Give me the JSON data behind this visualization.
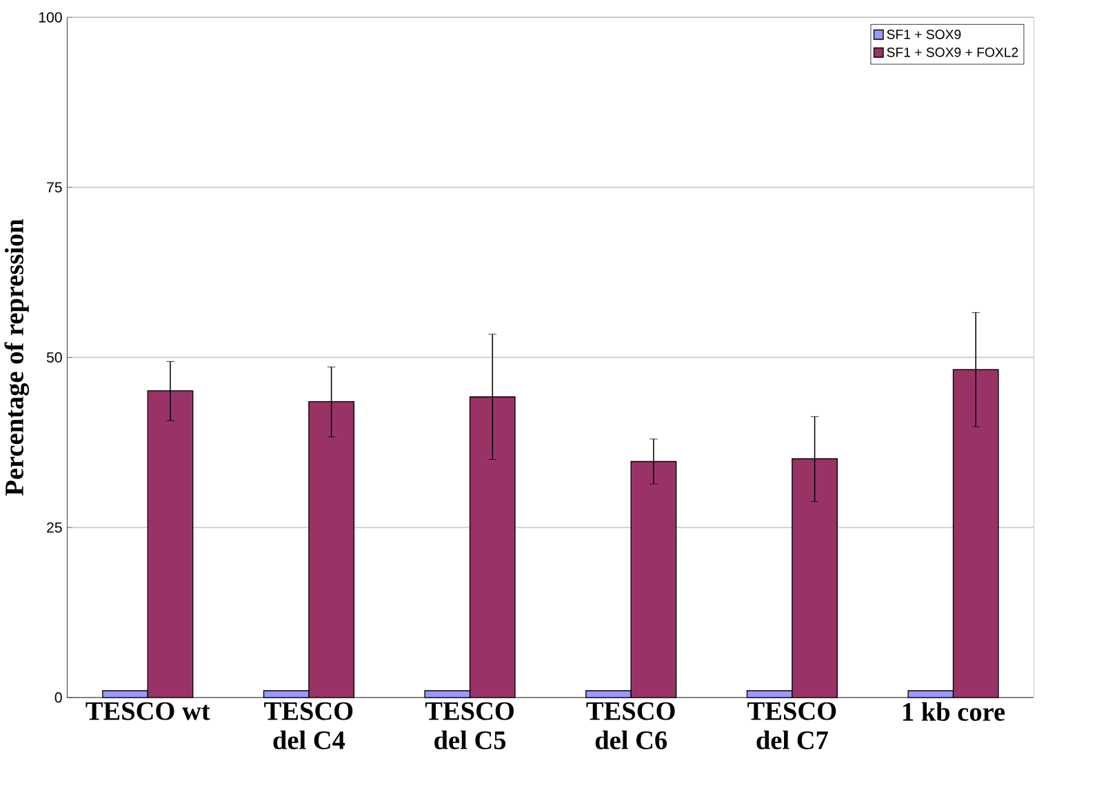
{
  "chart_data": {
    "type": "bar",
    "ylabel": "Percentage of repression",
    "categories": [
      "TESCO wt",
      "TESCO del C4",
      "TESCO del C5",
      "TESCO del C6",
      "TESCO del C7",
      "1 kb core"
    ],
    "series": [
      {
        "name": "SF1 + SOX9",
        "color": "#9999ff",
        "values": [
          1,
          1,
          1,
          1,
          1,
          1
        ]
      },
      {
        "name": "SF1 + SOX9 + FOXL2",
        "color": "#993366",
        "values": [
          45.1,
          43.5,
          44.2,
          34.7,
          35.1,
          48.2
        ],
        "errors": [
          [
            40.7,
            49.4
          ],
          [
            38.3,
            48.6
          ],
          [
            35.0,
            53.4
          ],
          [
            31.4,
            38.0
          ],
          [
            28.8,
            41.3
          ],
          [
            39.8,
            56.6
          ]
        ]
      }
    ],
    "ylim": [
      0,
      100
    ],
    "yticks": [
      0,
      25,
      50,
      75,
      100
    ],
    "grid": "y",
    "legend": "top right"
  }
}
